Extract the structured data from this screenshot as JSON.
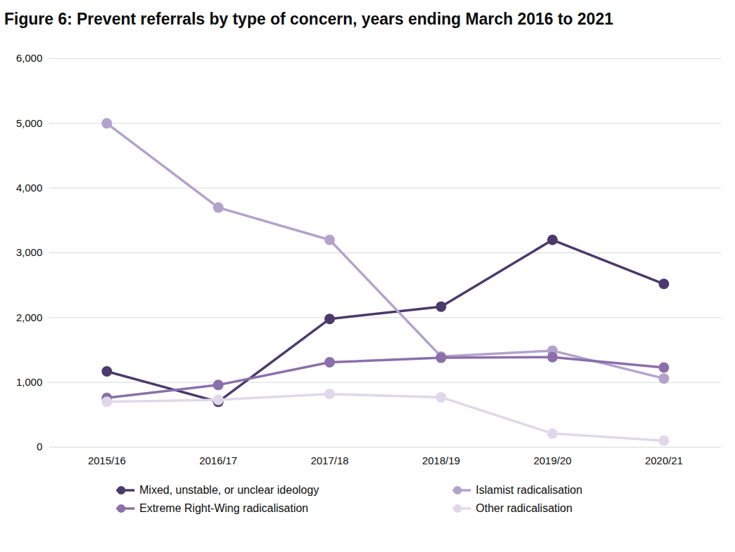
{
  "chart_data": {
    "type": "line",
    "title": "Figure 6: Prevent referrals by type of concern, years ending March 2016 to 2021",
    "categories": [
      "2015/16",
      "2016/17",
      "2017/18",
      "2018/19",
      "2019/20",
      "2020/21"
    ],
    "series": [
      {
        "name": "Mixed, unstable, or unclear ideology",
        "color": "#4b3a6b",
        "values": [
          1170,
          700,
          1980,
          2170,
          3200,
          2520
        ]
      },
      {
        "name": "Islamist radicalisation",
        "color": "#b3a3cc",
        "values": [
          5000,
          3700,
          3200,
          1400,
          1490,
          1060
        ]
      },
      {
        "name": "Extreme Right-Wing radicalisation",
        "color": "#8b6faa",
        "values": [
          760,
          960,
          1310,
          1380,
          1390,
          1230
        ]
      },
      {
        "name": "Other radicalisation",
        "color": "#e0d8ea",
        "values": [
          700,
          730,
          820,
          770,
          210,
          100
        ]
      }
    ],
    "ylim": [
      0,
      6000
    ],
    "yticks": [
      0,
      {
        "value": 1000,
        "label": "1,000"
      },
      {
        "value": 2000,
        "label": "2,000"
      },
      {
        "value": 3000,
        "label": "3,000"
      },
      {
        "value": 4000,
        "label": "4,000"
      },
      {
        "value": 5000,
        "label": "5,000"
      },
      {
        "value": 6000,
        "label": "6,000"
      }
    ],
    "grid": true,
    "legend": "bottom",
    "marker": "circle"
  }
}
